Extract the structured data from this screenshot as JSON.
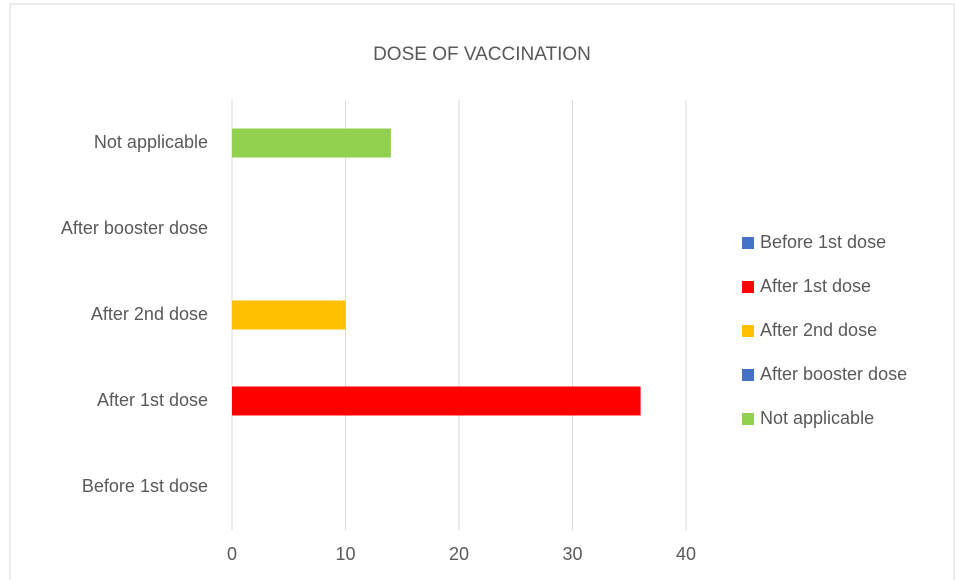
{
  "chart_data": {
    "type": "bar",
    "orientation": "horizontal",
    "title": "DOSE OF VACCINATION",
    "categories": [
      "Before 1st dose",
      "After 1st dose",
      "After 2nd dose",
      "After booster dose",
      "Not applicable"
    ],
    "values": [
      0,
      36,
      10,
      0,
      14
    ],
    "colors": [
      "#4472c4",
      "#ff0000",
      "#ffc000",
      "#4472c4",
      "#92d050"
    ],
    "xlim": [
      0,
      40
    ],
    "xticks": [
      0,
      10,
      20,
      30,
      40
    ],
    "grid": true,
    "legend": "right"
  }
}
